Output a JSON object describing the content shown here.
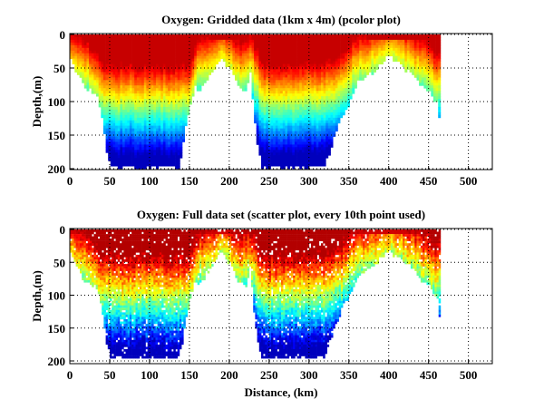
{
  "chart_data": [
    {
      "type": "heatmap",
      "title": "Oxygen: Gridded data (1km x 4m) (pcolor plot)",
      "xlabel": "",
      "ylabel": "Depth,(m)",
      "xlim": [
        0,
        530
      ],
      "ylim": [
        200,
        0
      ],
      "y_reversed": true,
      "xticks": [
        "0",
        "50",
        "100",
        "150",
        "200",
        "250",
        "300",
        "350",
        "400",
        "450",
        "500"
      ],
      "yticks": [
        "0",
        "50",
        "100",
        "150",
        "200"
      ],
      "grid": true,
      "colormap": "jet",
      "data_extent_km": [
        0,
        463
      ],
      "bottom_depth_profile": {
        "distance": [
          0,
          10,
          20,
          30,
          35,
          40,
          45,
          50,
          135,
          140,
          145,
          150,
          155,
          160,
          170,
          180,
          188,
          192,
          200,
          210,
          220,
          225,
          230,
          235,
          240,
          315,
          320,
          330,
          340,
          350,
          360,
          370,
          380,
          390,
          400,
          410,
          420,
          430,
          440,
          450,
          460,
          463
        ],
        "depth": [
          35,
          60,
          80,
          85,
          95,
          130,
          170,
          195,
          195,
          170,
          130,
          105,
          75,
          85,
          65,
          50,
          30,
          40,
          50,
          75,
          85,
          55,
          120,
          170,
          195,
          195,
          190,
          150,
          120,
          100,
          70,
          60,
          55,
          40,
          30,
          40,
          50,
          60,
          75,
          85,
          100,
          135
        ]
      },
      "oxycline_depth_profile": {
        "distance": [
          0,
          20,
          40,
          60,
          100,
          140,
          150,
          160,
          175,
          188,
          200,
          215,
          225,
          240,
          280,
          320,
          340,
          360,
          380,
          400,
          420,
          440,
          460
        ],
        "depth": [
          40,
          60,
          90,
          95,
          95,
          95,
          90,
          55,
          50,
          30,
          45,
          60,
          50,
          90,
          95,
          90,
          75,
          50,
          40,
          25,
          40,
          55,
          75
        ]
      }
    },
    {
      "type": "scatter",
      "title": "Oxygen: Full data set (scatter plot, every 10th point used)",
      "xlabel": "Distance, (km)",
      "ylabel": "Depth,(m)",
      "xlim": [
        0,
        530
      ],
      "ylim": [
        200,
        0
      ],
      "y_reversed": true,
      "xticks": [
        "0",
        "50",
        "100",
        "150",
        "200",
        "250",
        "300",
        "350",
        "400",
        "450",
        "500"
      ],
      "yticks": [
        "0",
        "50",
        "100",
        "150",
        "200"
      ],
      "grid": true,
      "colormap": "jet"
    }
  ]
}
